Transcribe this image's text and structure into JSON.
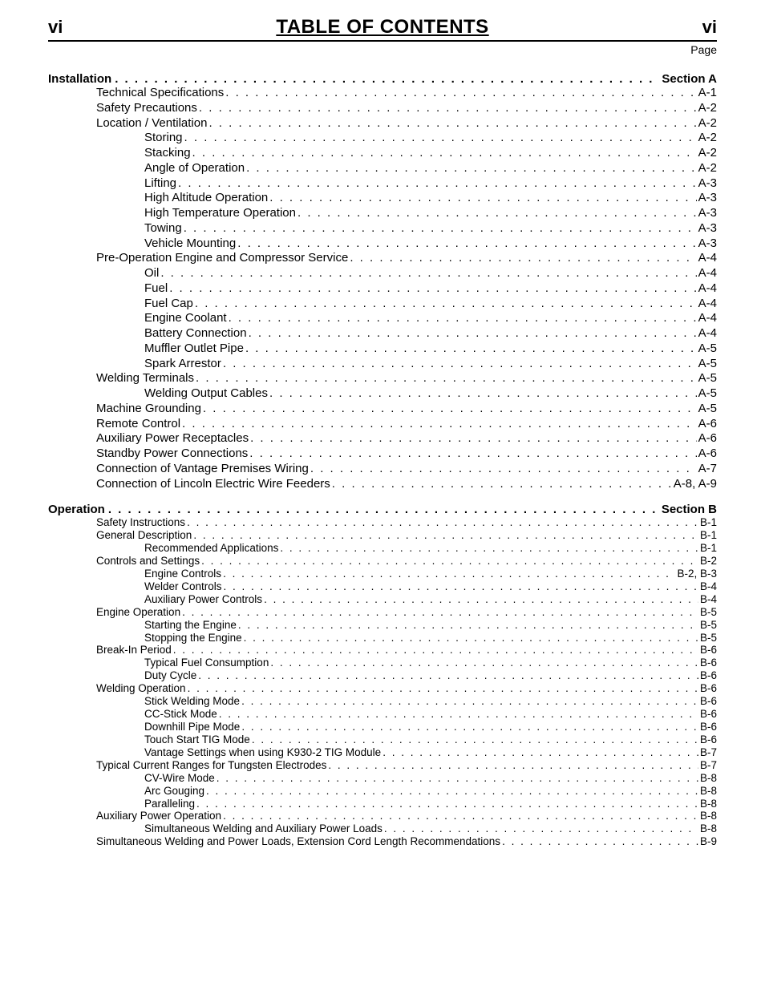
{
  "header": {
    "page_num_left": "vi",
    "title": "TABLE OF CONTENTS",
    "page_num_right": "vi",
    "page_label": "Page"
  },
  "leader_dots": ". . . . . . . . . . . . . . . . . . . . . . . . . . . . . . . . . . . . . . . . . . . . . . . . . . . . . . . . . . . . . . . . . . . . . . . . . . . . . . . . . . . . . . . . . . . . . . . . . . . . . . . . . . . . . . . . . . . . . . . . . . . . . . . . . . . . . . . . . . . . . . . . . . . . . .",
  "sections": [
    {
      "heading_label": "Installation",
      "heading_right": "Section A",
      "small": false,
      "items": [
        {
          "indent": 1,
          "label": "Technical Specifications",
          "page": "A-1"
        },
        {
          "indent": 1,
          "label": "Safety Precautions",
          "page": "A-2"
        },
        {
          "indent": 1,
          "label": "Location / Ventilation",
          "page": "A-2"
        },
        {
          "indent": 2,
          "label": "Storing",
          "page": "A-2"
        },
        {
          "indent": 2,
          "label": "Stacking",
          "page": "A-2"
        },
        {
          "indent": 2,
          "label": "Angle of Operation",
          "page": "A-2"
        },
        {
          "indent": 2,
          "label": "Lifting",
          "page": "A-3"
        },
        {
          "indent": 2,
          "label": "High Altitude Operation",
          "page": "A-3"
        },
        {
          "indent": 2,
          "label": "High Temperature Operation",
          "page": "A-3"
        },
        {
          "indent": 2,
          "label": "Towing",
          "page": "A-3"
        },
        {
          "indent": 2,
          "label": "Vehicle Mounting",
          "page": "A-3"
        },
        {
          "indent": 1,
          "label": "Pre-Operation Engine and Compressor Service",
          "page": "A-4"
        },
        {
          "indent": 2,
          "label": "Oil",
          "page": "A-4"
        },
        {
          "indent": 2,
          "label": "Fuel",
          "page": "A-4"
        },
        {
          "indent": 2,
          "label": "Fuel Cap",
          "page": "A-4"
        },
        {
          "indent": 2,
          "label": "Engine Coolant",
          "page": "A-4"
        },
        {
          "indent": 2,
          "label": "Battery Connection",
          "page": "A-4"
        },
        {
          "indent": 2,
          "label": "Muffler Outlet Pipe",
          "page": "A-5"
        },
        {
          "indent": 2,
          "label": "Spark Arrestor",
          "page": "A-5"
        },
        {
          "indent": 1,
          "label": "Welding Terminals",
          "page": "A-5"
        },
        {
          "indent": 2,
          "label": "Welding Output Cables",
          "page": "A-5"
        },
        {
          "indent": 1,
          "label": "Machine Grounding",
          "page": "A-5"
        },
        {
          "indent": 1,
          "label": "Remote Control",
          "page": "A-6"
        },
        {
          "indent": 1,
          "label": "Auxiliary Power Receptacles",
          "page": "A-6"
        },
        {
          "indent": 1,
          "label": "Standby Power Connections",
          "page": "A-6"
        },
        {
          "indent": 1,
          "label": "Connection of Vantage Premises Wiring",
          "page": "A-7"
        },
        {
          "indent": 1,
          "label": "Connection of Lincoln Electric Wire Feeders",
          "page": "A-8, A-9"
        }
      ]
    },
    {
      "heading_label": "Operation",
      "heading_right": "Section B",
      "small": true,
      "items": [
        {
          "indent": 1,
          "label": "Safety Instructions",
          "page": "B-1"
        },
        {
          "indent": 1,
          "label": "General Description",
          "page": "B-1"
        },
        {
          "indent": 2,
          "label": "Recommended Applications",
          "page": "B-1"
        },
        {
          "indent": 1,
          "label": "Controls and Settings",
          "page": "B-2"
        },
        {
          "indent": 2,
          "label": "Engine Controls",
          "page": "B-2, B-3"
        },
        {
          "indent": 2,
          "label": "Welder Controls",
          "page": "B-4"
        },
        {
          "indent": 2,
          "label": "Auxiliary Power Controls",
          "page": "B-4"
        },
        {
          "indent": 1,
          "label": "Engine Operation",
          "page": "B-5"
        },
        {
          "indent": 2,
          "label": "Starting the Engine",
          "page": "B-5"
        },
        {
          "indent": 2,
          "label": "Stopping the Engine",
          "page": "B-5"
        },
        {
          "indent": 1,
          "label": "Break-In Period",
          "page": "B-6"
        },
        {
          "indent": 2,
          "label": "Typical Fuel Consumption",
          "page": "B-6"
        },
        {
          "indent": 2,
          "label": "Duty Cycle",
          "page": "B-6"
        },
        {
          "indent": 1,
          "label": "Welding Operation",
          "page": "B-6"
        },
        {
          "indent": 2,
          "label": "Stick Welding Mode",
          "page": "B-6"
        },
        {
          "indent": 2,
          "label": "CC-Stick Mode",
          "page": "B-6"
        },
        {
          "indent": 2,
          "label": "Downhill Pipe Mode",
          "page": "B-6"
        },
        {
          "indent": 2,
          "label": "Touch Start TIG Mode",
          "page": "B-6"
        },
        {
          "indent": 2,
          "label": "Vantage Settings when using K930-2 TIG Module",
          "page": "B-7"
        },
        {
          "indent": 1,
          "label": "Typical Current Ranges for Tungsten Electrodes",
          "page": "B-7"
        },
        {
          "indent": 2,
          "label": "CV-Wire Mode",
          "page": "B-8"
        },
        {
          "indent": 2,
          "label": "Arc Gouging",
          "page": "B-8"
        },
        {
          "indent": 2,
          "label": "Paralleling",
          "page": "B-8"
        },
        {
          "indent": 1,
          "label": "Auxiliary Power Operation",
          "page": "B-8"
        },
        {
          "indent": 2,
          "label": "Simultaneous Welding and Auxiliary Power Loads",
          "page": "B-8"
        },
        {
          "indent": 1,
          "label": "Simultaneous Welding and Power Loads, Extension Cord Length Recommendations",
          "page": "B-9"
        }
      ]
    }
  ]
}
